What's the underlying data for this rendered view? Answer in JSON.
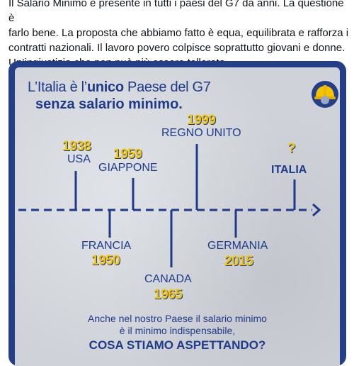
{
  "tweet": {
    "lines": [
      "Il Salario Minimo è presente in tutti i paesi del G7 da anni. La questione è",
      "farlo bene. La proposta che abbiamo fatto è equa, equilibrata e rafforza i",
      "contratti nazionali. Il lavoro povero colpisce soprattutto giovani e donne.",
      "Un’ingiustizia che non può più essere tollerata."
    ]
  },
  "poster": {
    "headline_pre": "L’Italia è l’",
    "headline_bold": "unico",
    "headline_post": " Paese del G7",
    "headline_line2": "senza salario minimo.",
    "helmet_icon": "hard-hat-icon",
    "events": [
      {
        "year": "1938",
        "country": "USA"
      },
      {
        "year": "1959",
        "country": "GIAPPONE"
      },
      {
        "year": "1999",
        "country": "REGNO UNITO"
      },
      {
        "year": "?",
        "country": "ITALIA"
      },
      {
        "year": "1950",
        "country": "FRANCIA"
      },
      {
        "year": "1965",
        "country": "CANADA"
      },
      {
        "year": "2015",
        "country": "GERMANIA"
      }
    ],
    "bottom_line1": "Anche nel nostro Paese il salario minimo",
    "bottom_line2": "è il minimo indispensabile,",
    "bottom_cta": "COSA STIAMO ASPETTANDO?"
  },
  "colors": {
    "frame_blue": "#243f87",
    "text_blue": "#1e3a8a",
    "year_yellow": "#f5c400",
    "poster_grey": "#cfd3d9"
  }
}
